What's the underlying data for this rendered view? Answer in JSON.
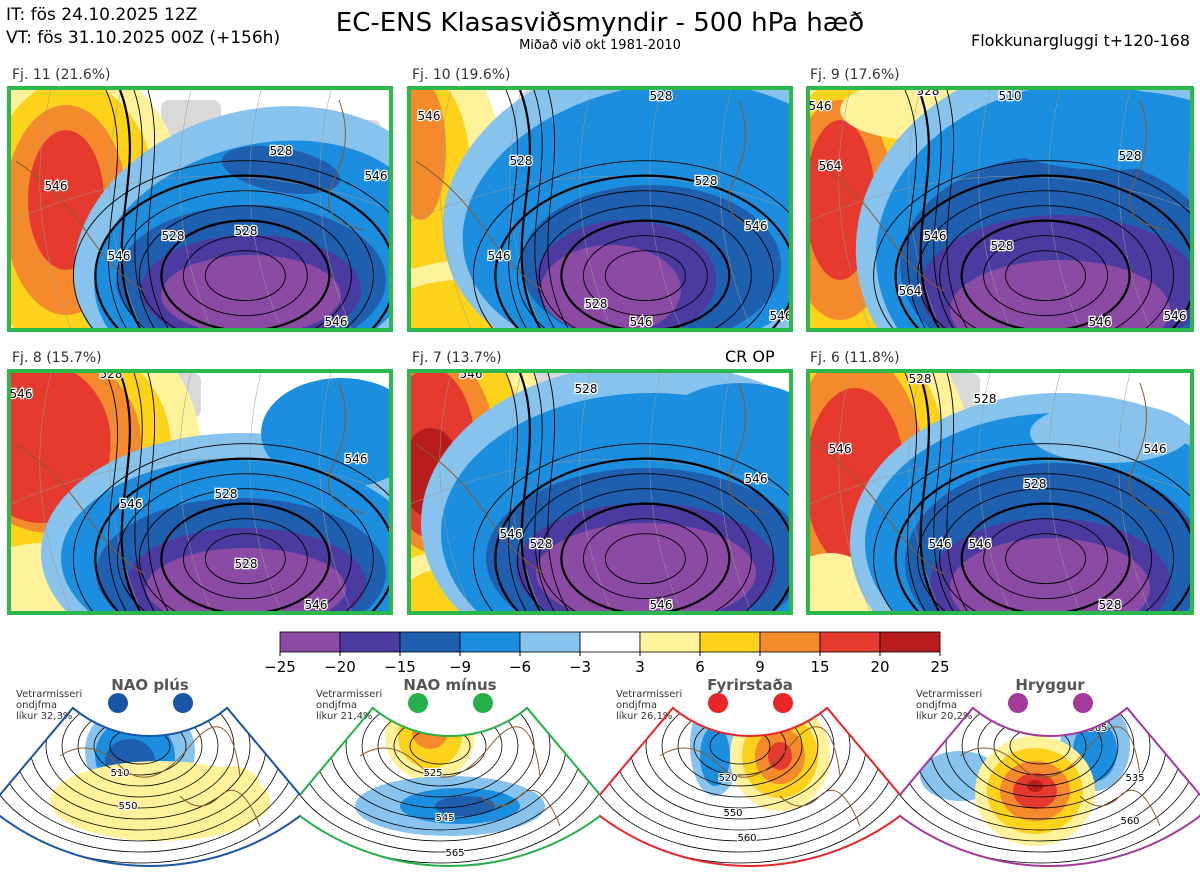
{
  "header": {
    "it_line": "IT: fös 24.10.2025 12Z",
    "vt_line": "VT: fös 31.10.2025 00Z  (+156h)",
    "title": "EC-ENS Klasasviðsmyndir - 500 hPa hæð",
    "subtitle": "Miðað við okt 1981-2010",
    "cluster_window": "Flokkunargluggi t+120-168"
  },
  "op_marker": "CR OP",
  "chart_data": [
    {
      "type": "heatmap",
      "title": "Fj. 11 (21.6%)",
      "contour_labels": [
        "546",
        "528",
        "528",
        "546",
        "528",
        "546",
        "546"
      ]
    },
    {
      "type": "heatmap",
      "title": "Fj. 10 (19.6%)",
      "contour_labels": [
        "546",
        "528",
        "528",
        "528",
        "546",
        "546",
        "528",
        "546",
        "546"
      ]
    },
    {
      "type": "heatmap",
      "title": "Fj. 9 (17.6%)",
      "contour_labels": [
        "546",
        "528",
        "510",
        "564",
        "546",
        "528",
        "528",
        "564",
        "546",
        "546"
      ]
    },
    {
      "type": "heatmap",
      "title": "Fj. 8 (15.7%)",
      "contour_labels": [
        "546",
        "528",
        "546",
        "546",
        "528",
        "528",
        "546"
      ]
    },
    {
      "type": "heatmap",
      "title": "Fj. 7 (13.7%)",
      "contour_labels": [
        "546",
        "528",
        "546",
        "546",
        "528",
        "546"
      ]
    },
    {
      "type": "heatmap",
      "title": "Fj. 6 (11.8%)",
      "contour_labels": [
        "546",
        "528",
        "528",
        "546",
        "528",
        "546",
        "546",
        "528"
      ]
    },
    {
      "type": "colorbar",
      "title": "Anomaly colour scale",
      "ticks": [
        "−25",
        "−20",
        "−15",
        "−9",
        "−6",
        "−3",
        "3",
        "6",
        "9",
        "15",
        "20",
        "25"
      ],
      "bins": [
        {
          "from": -25,
          "to": -20,
          "color": "#8b4ba4"
        },
        {
          "from": -20,
          "to": -15,
          "color": "#4b3ba0"
        },
        {
          "from": -15,
          "to": -9,
          "color": "#1f5fb0"
        },
        {
          "from": -9,
          "to": -6,
          "color": "#1c8ee0"
        },
        {
          "from": -6,
          "to": -3,
          "color": "#87c3ec"
        },
        {
          "from": -3,
          "to": 3,
          "color": "#ffffff"
        },
        {
          "from": 3,
          "to": 6,
          "color": "#fff29a"
        },
        {
          "from": 6,
          "to": 9,
          "color": "#fdd21a"
        },
        {
          "from": 9,
          "to": 15,
          "color": "#f58a2c"
        },
        {
          "from": 15,
          "to": 20,
          "color": "#e63a2e"
        },
        {
          "from": 20,
          "to": 25,
          "color": "#b81c1c"
        }
      ]
    }
  ],
  "regimes": [
    {
      "name": "NAO plús",
      "note": [
        "Vetrarmisseri",
        "ondjfma",
        "líkur 32,3%"
      ],
      "labels": [
        "510",
        "550"
      ],
      "color": "#1a56a6"
    },
    {
      "name": "NAO mínus",
      "note": [
        "Vetrarmisseri",
        "ondjfma",
        "líkur 21,4%"
      ],
      "labels": [
        "525",
        "545",
        "565"
      ],
      "color": "#26b04a"
    },
    {
      "name": "Fyrirstaða",
      "note": [
        "Vetrarmisseri",
        "ondjfma",
        "líkur 26,1%"
      ],
      "labels": [
        "520",
        "550",
        "560"
      ],
      "color": "#e8262a"
    },
    {
      "name": "Hryggur",
      "note": [
        "Vetrarmisseri",
        "ondjfma",
        "líkur 20,2%"
      ],
      "labels": [
        "505",
        "535",
        "560"
      ],
      "color": "#a33a9c"
    }
  ],
  "colors": {
    "panel_border": "#2db84b",
    "land_gray": "#d9d9d9",
    "coast": "#8a5a2b"
  }
}
